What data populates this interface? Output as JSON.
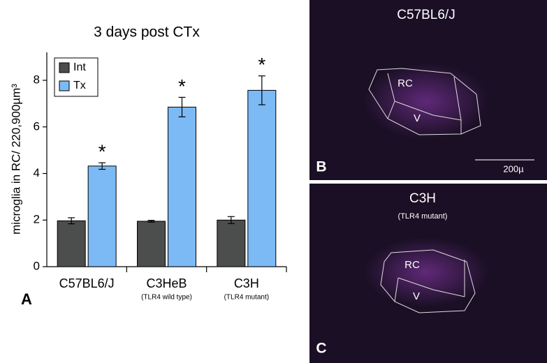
{
  "chart_data": {
    "type": "bar",
    "title": "3 days post CTx",
    "panel_label": "A",
    "ylabel": "microglia in RC/ 220,900µm³",
    "categories": [
      "C57BL6/J",
      "C3HeB",
      "C3H"
    ],
    "category_notes": [
      null,
      "(TLR4 wild type)",
      "(TLR4 mutant)"
    ],
    "series": [
      {
        "name": "Int",
        "color": "#4b4e4c",
        "values": [
          1.97,
          1.95,
          2.0
        ],
        "errors": [
          0.13,
          0.04,
          0.15
        ]
      },
      {
        "name": "Tx",
        "color": "#7cbaf5",
        "values": [
          4.32,
          6.85,
          7.57
        ],
        "errors": [
          0.14,
          0.42,
          0.62
        ],
        "annotations": [
          "*",
          "*",
          "*"
        ]
      }
    ],
    "ylim": [
      0,
      9.2
    ],
    "yticks": [
      0,
      2,
      4,
      6,
      8
    ],
    "legend": "upper left"
  },
  "panels": [
    {
      "label": "B",
      "title": "C57BL6/J",
      "regions": [
        "RC",
        "V"
      ],
      "scale_bar": "200µ"
    },
    {
      "label": "C",
      "title": "C3H",
      "subtitle": "(TLR4 mutant)",
      "regions": [
        "RC",
        "V"
      ]
    }
  ]
}
